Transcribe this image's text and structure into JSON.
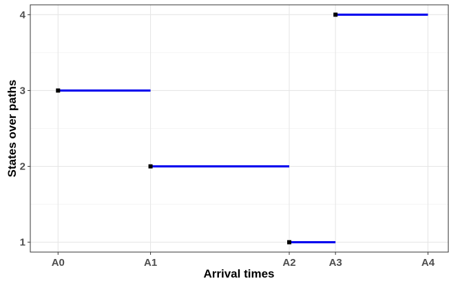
{
  "chart_data": {
    "type": "step",
    "xlabel": "Arrival times",
    "ylabel": "States over paths",
    "x_ticks": [
      {
        "label": "A0",
        "value": 0
      },
      {
        "label": "A1",
        "value": 1
      },
      {
        "label": "A2",
        "value": 2.5
      },
      {
        "label": "A3",
        "value": 3
      },
      {
        "label": "A4",
        "value": 4
      }
    ],
    "y_ticks": [
      1,
      2,
      3,
      4
    ],
    "xlim": [
      -0.3,
      4.22
    ],
    "ylim": [
      0.87,
      4.13
    ],
    "grid": true,
    "segments": [
      {
        "x_start": 0,
        "x_end": 1,
        "state": 3
      },
      {
        "x_start": 1,
        "x_end": 2.5,
        "state": 2
      },
      {
        "x_start": 2.5,
        "x_end": 3,
        "state": 1
      },
      {
        "x_start": 3,
        "x_end": 4,
        "state": 4
      }
    ],
    "colors": {
      "line": "#0000ee",
      "point": "#000000"
    }
  }
}
